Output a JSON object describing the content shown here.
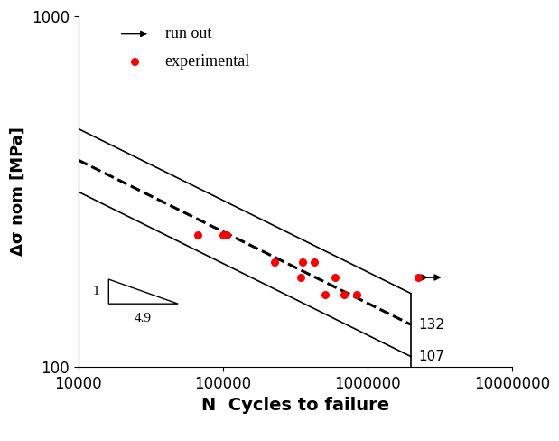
{
  "chart_data": {
    "type": "scatter",
    "x_label": "N  Cycles to failure",
    "y_label": "Δσ nom [MPa]",
    "log": true,
    "grid": false,
    "legend": "upper left",
    "xlim": [
      10000,
      10000000
    ],
    "ylim": [
      100,
      1000
    ],
    "xticks": [
      10000,
      100000,
      1000000,
      10000000
    ],
    "yticks": [
      100,
      1000
    ],
    "series": [
      {
        "name": "run out",
        "type": "scatter",
        "marker": "arrow",
        "color": "#000000",
        "x": [
          2240000
        ],
        "values": [
          180
        ]
      },
      {
        "name": "experimental",
        "type": "scatter",
        "marker": "circle",
        "color": "#ff0000",
        "x": [
          66800,
          101000,
          107000,
          227000,
          355000,
          428000,
          345000,
          596000,
          509000,
          688000,
          841000,
          2240000
        ],
        "values": [
          238,
          238,
          238,
          199,
          199,
          199,
          180,
          180,
          161,
          161,
          161,
          180
        ]
      },
      {
        "type": "line",
        "line_style": "solid",
        "color": "#000000",
        "x": [
          10000,
          2000000
        ],
        "values": [
          478,
          162
        ]
      },
      {
        "type": "line",
        "line_style": "dashed",
        "color": "#000000",
        "x": [
          10000,
          2000000
        ],
        "values": [
          389,
          132
        ]
      },
      {
        "type": "line",
        "line_style": "solid",
        "color": "#000000",
        "x": [
          10000,
          2000000
        ],
        "values": [
          316,
          107
        ]
      },
      {
        "type": "line",
        "line_style": "solid",
        "color": "#000000",
        "x": [
          2000000,
          2000000
        ],
        "values": [
          100,
          162
        ]
      }
    ],
    "annotations": [
      {
        "text": "132",
        "x": 2000000,
        "y": 132
      },
      {
        "text": "107",
        "x": 2000000,
        "y": 107
      }
    ],
    "slope": {
      "rise": "1",
      "run": "4.9"
    }
  }
}
